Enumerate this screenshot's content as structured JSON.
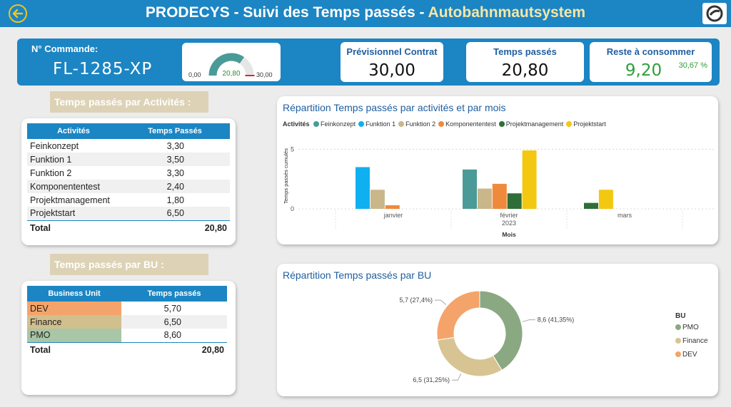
{
  "header": {
    "title_main": "PRODECYS - Suivi des Temps passés - ",
    "title_project": "Autobahnmautsystem"
  },
  "kpis": {
    "order_label": "N° Commande:",
    "order_value": "FL-1285-XP",
    "gauge": {
      "min": "0,00",
      "value": "20,80",
      "max": "30,00",
      "min_num": 0,
      "value_num": 20.8,
      "max_num": 30
    },
    "contract_label": "Prévisionnel Contrat",
    "contract_value": "30,00",
    "spent_label": "Temps passés",
    "spent_value": "20,80",
    "remaining_label": "Reste à consommer",
    "remaining_value": "9,20",
    "remaining_pct": "30,67 %"
  },
  "activities_section": {
    "banner": "Temps passés par Activités :",
    "headers": [
      "Activités",
      "Temps Passés"
    ],
    "rows": [
      {
        "name": "Feinkonzept",
        "value": "3,30"
      },
      {
        "name": "Funktion 1",
        "value": "3,50"
      },
      {
        "name": "Funktion 2",
        "value": "3,30"
      },
      {
        "name": "Komponententest",
        "value": "2,40"
      },
      {
        "name": "Projektmanagement",
        "value": "1,80"
      },
      {
        "name": "Projektstart",
        "value": "6,50"
      }
    ],
    "total_label": "Total",
    "total_value": "20,80"
  },
  "bu_section": {
    "banner": "Temps passés par BU :",
    "headers": [
      "Business Unit",
      "Temps passés"
    ],
    "rows": [
      {
        "name": "DEV",
        "value": "5,70",
        "color": "#f4a46a"
      },
      {
        "name": "Finance",
        "value": "6,50",
        "color": "#d2bf8e"
      },
      {
        "name": "PMO",
        "value": "8,60",
        "color": "#a9c6a6"
      }
    ],
    "total_label": "Total",
    "total_value": "20,80"
  },
  "chart_data": [
    {
      "type": "bar",
      "title": "Répartition Temps passés par activités et par mois",
      "legend_title": "Activités",
      "legend_placement": "top-left",
      "categories": [
        "janvier",
        "février",
        "mars"
      ],
      "x_group_label": "2023",
      "xlabel": "Mois",
      "ylabel": "Temps passés cumulés",
      "ylim": [
        0,
        5.5
      ],
      "yticks": [
        0,
        5
      ],
      "grid": true,
      "series": [
        {
          "name": "Feinkonzept",
          "color": "#4a9a98",
          "values": [
            0,
            3.3,
            0
          ]
        },
        {
          "name": "Funktion 1",
          "color": "#0fb0f0",
          "values": [
            3.5,
            0,
            0
          ]
        },
        {
          "name": "Funktion 2",
          "color": "#c9b68a",
          "values": [
            1.6,
            1.7,
            0
          ]
        },
        {
          "name": "Komponententest",
          "color": "#ef8a3c",
          "values": [
            0.3,
            2.1,
            0
          ]
        },
        {
          "name": "Projektmanagement",
          "color": "#2f6e38",
          "values": [
            0,
            1.3,
            0.5
          ]
        },
        {
          "name": "Projektstart",
          "color": "#f2c811",
          "values": [
            0,
            4.9,
            1.6
          ]
        }
      ]
    },
    {
      "type": "pie",
      "title": "Répartition Temps passés par BU",
      "legend_title": "BU",
      "legend_placement": "right",
      "slices": [
        {
          "name": "PMO",
          "value": 8.6,
          "label": "8,6 (41,35%)",
          "color": "#8aa882"
        },
        {
          "name": "Finance",
          "value": 6.5,
          "label": "6,5 (31,25%)",
          "color": "#d7c492"
        },
        {
          "name": "DEV",
          "value": 5.7,
          "label": "5,7 (27,4%)",
          "color": "#f4a46a"
        }
      ]
    }
  ]
}
